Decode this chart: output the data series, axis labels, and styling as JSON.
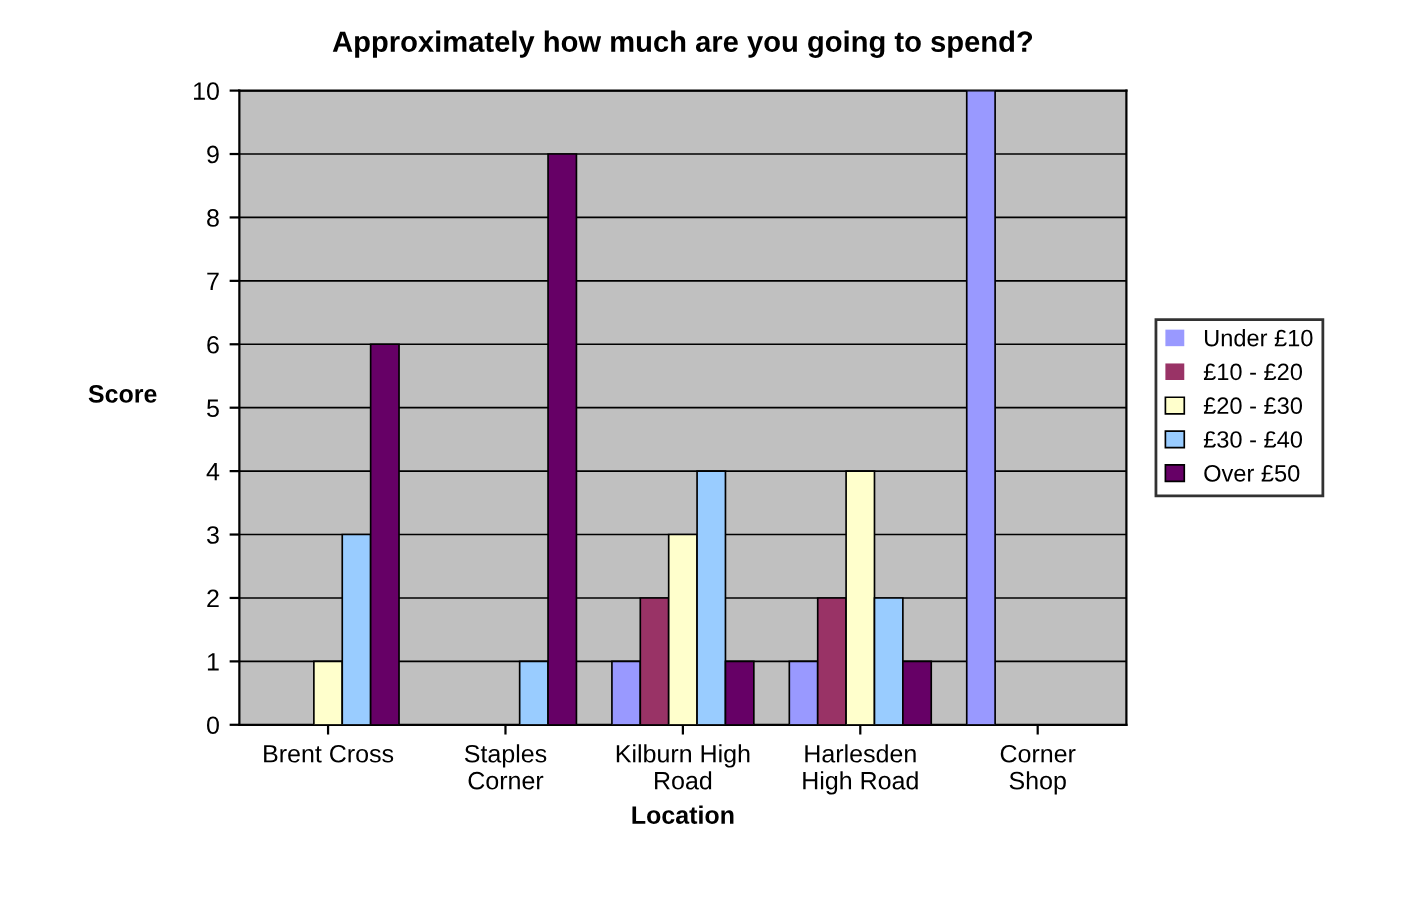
{
  "chart_data": {
    "type": "bar",
    "title": "Approximately how much are you going to spend?",
    "xlabel": "Location",
    "ylabel": "Score",
    "categories": [
      "Brent Cross",
      "Staples\nCorner",
      "Kilburn High\nRoad",
      "Harlesden\nHigh Road",
      "Corner\nShop"
    ],
    "series": [
      {
        "name": "Under £10",
        "color": "#9999ff",
        "values": [
          0,
          0,
          1,
          1,
          10
        ]
      },
      {
        "name": "£10 - £20",
        "color": "#993366",
        "values": [
          0,
          0,
          2,
          2,
          0
        ]
      },
      {
        "name": "£20 - £30",
        "color": "#ffffcc",
        "values": [
          1,
          0,
          3,
          4,
          0
        ]
      },
      {
        "name": "£30 - £40",
        "color": "#99ccff",
        "values": [
          3,
          1,
          4,
          2,
          0
        ]
      },
      {
        "name": "Over £50",
        "color": "#660066",
        "values": [
          6,
          9,
          1,
          1,
          0
        ]
      }
    ],
    "ylim": [
      0,
      10
    ],
    "yticks": [
      0,
      1,
      2,
      3,
      4,
      5,
      6,
      7,
      8,
      9,
      10
    ],
    "grid": "y",
    "legend": "right"
  }
}
